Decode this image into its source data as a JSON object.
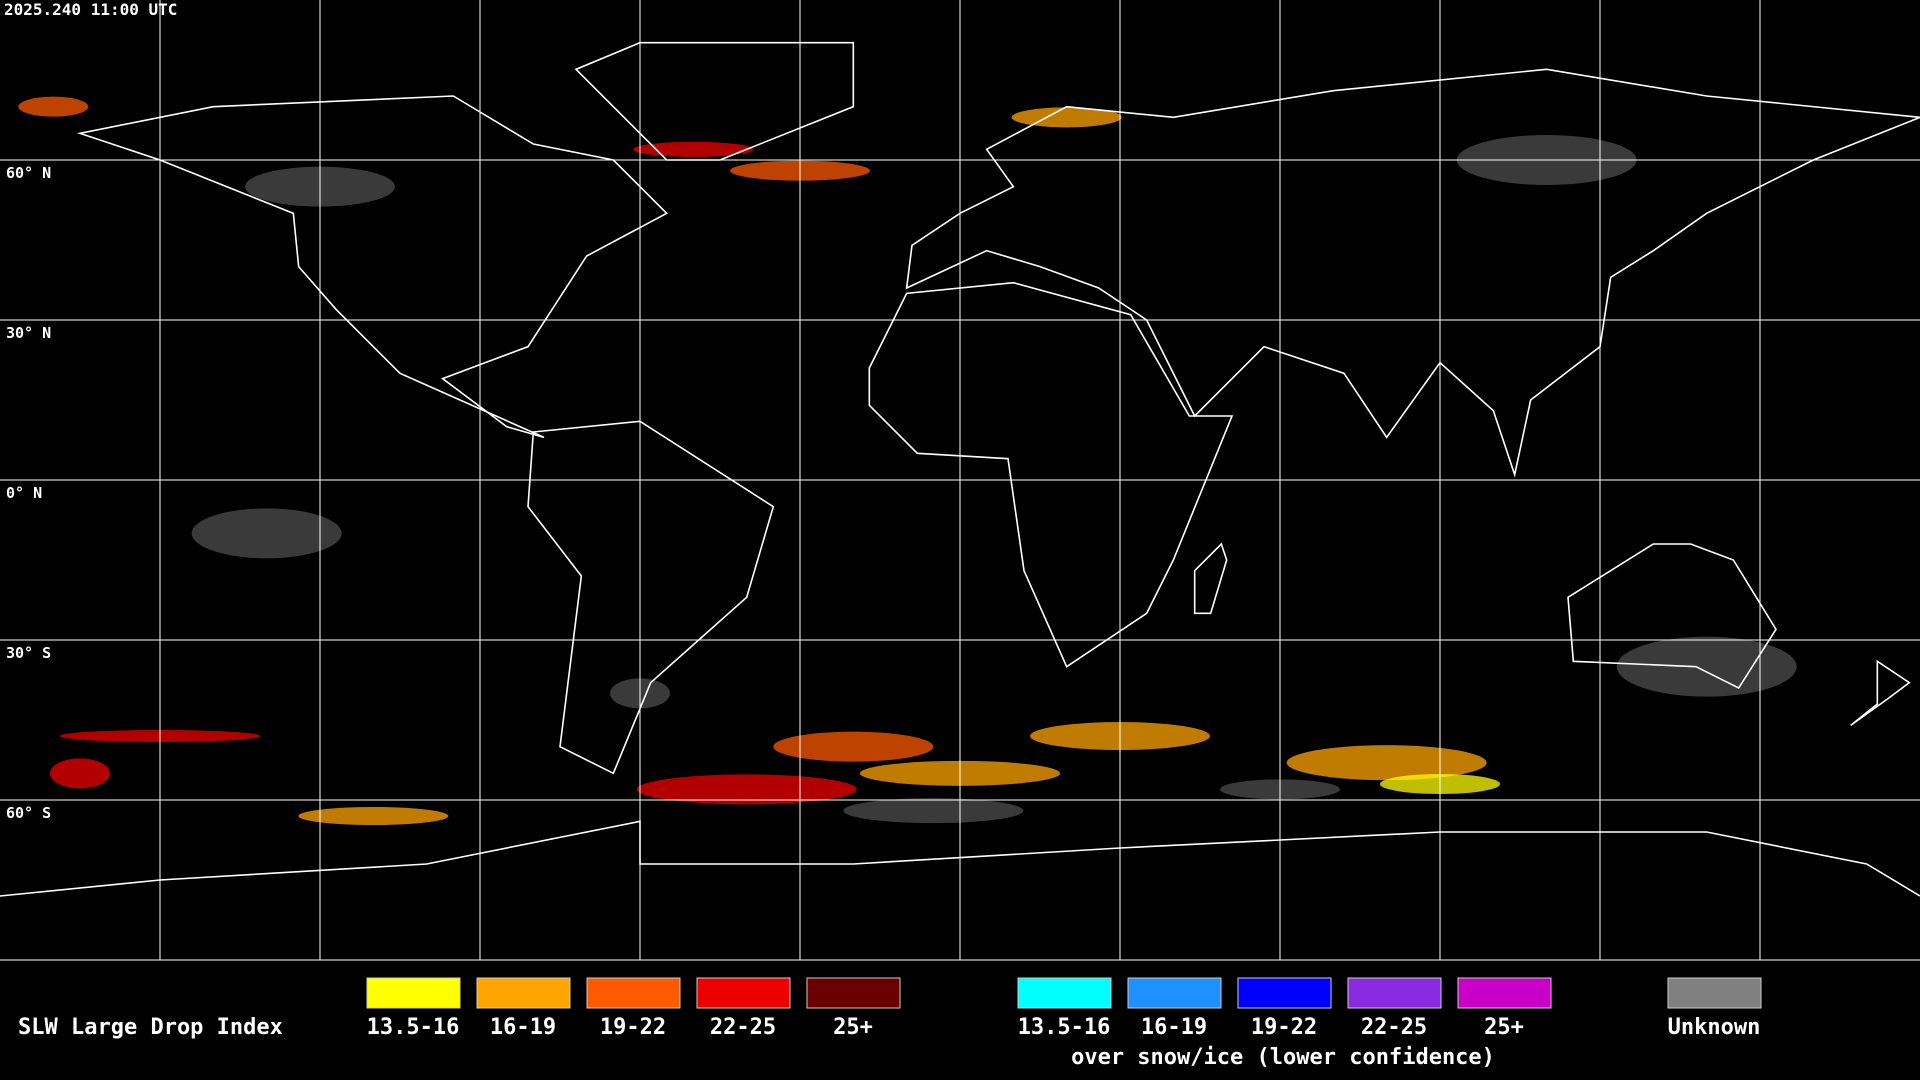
{
  "header": {
    "timestamp": "2025.240 11:00 UTC"
  },
  "grid": {
    "lat_labels": [
      "60° N",
      "30° N",
      "0° N",
      "30° S",
      "60° S"
    ]
  },
  "legend": {
    "title": "SLW Large Drop Index",
    "normal": [
      {
        "label": "13.5-16",
        "color": "#ffff00"
      },
      {
        "label": "16-19",
        "color": "#ffa500"
      },
      {
        "label": "19-22",
        "color": "#ff5a00"
      },
      {
        "label": "22-25",
        "color": "#ee0000"
      },
      {
        "label": "25+",
        "color": "#6a0000"
      }
    ],
    "snow_ice": [
      {
        "label": "13.5-16",
        "color": "#00ffff"
      },
      {
        "label": "16-19",
        "color": "#1e90ff"
      },
      {
        "label": "19-22",
        "color": "#0000ff"
      },
      {
        "label": "22-25",
        "color": "#8a2be2"
      },
      {
        "label": "25+",
        "color": "#c800c8"
      }
    ],
    "snow_ice_caption": "over snow/ice (lower confidence)",
    "unknown": {
      "label": "Unknown",
      "color": "#808080"
    }
  }
}
